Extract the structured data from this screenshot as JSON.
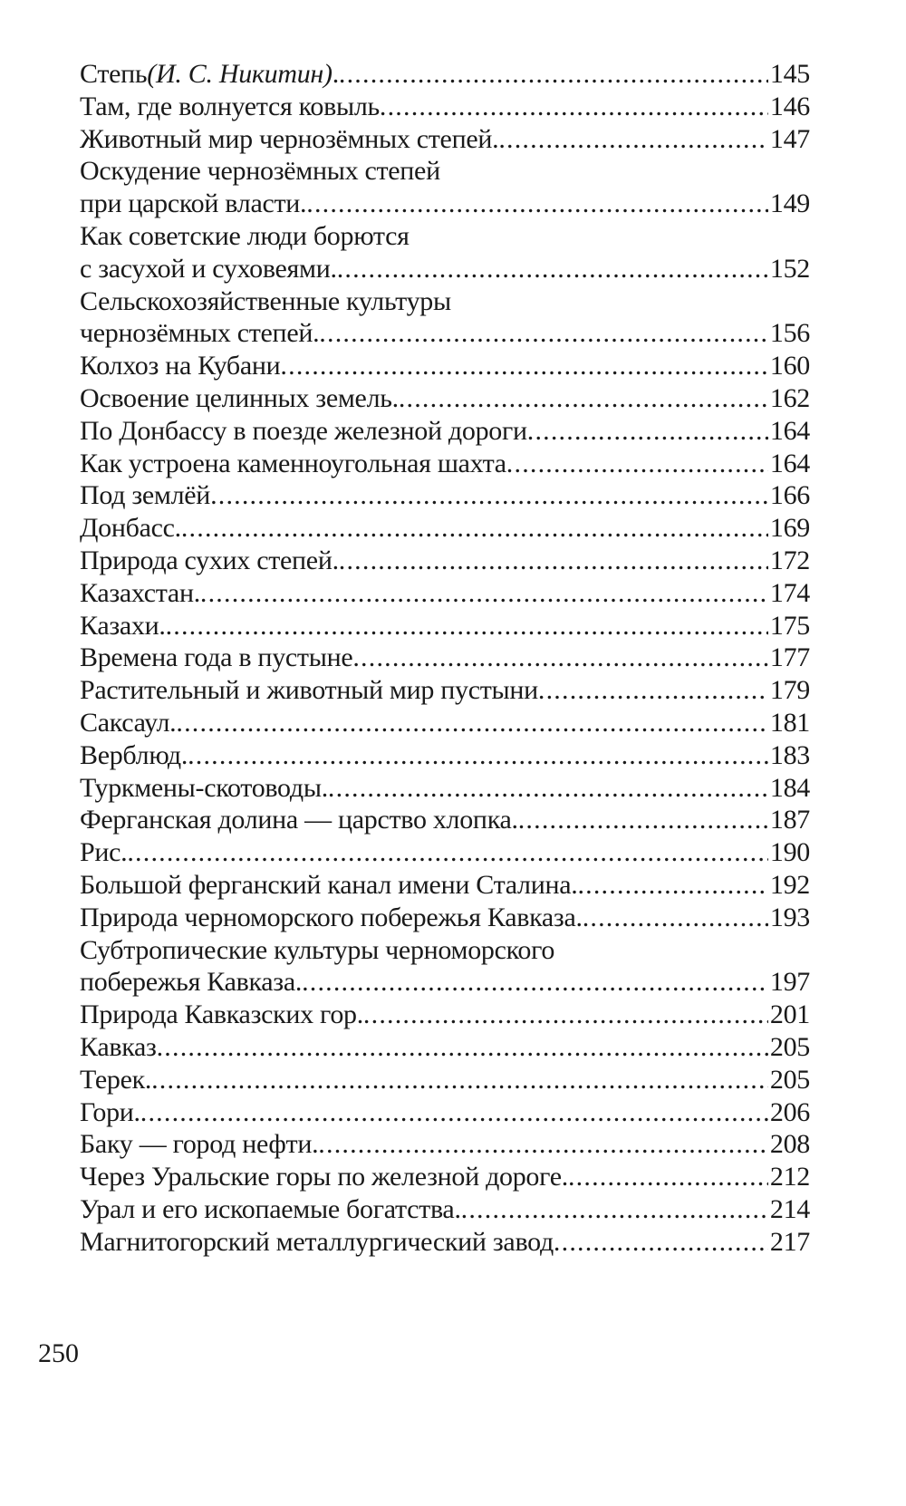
{
  "toc": {
    "entries": [
      {
        "lines": [
          "Степь "
        ],
        "italic": "(И. С. Никитин)",
        "suffix": ".",
        "page": "145"
      },
      {
        "lines": [
          "Там, где волнуется ковыль"
        ],
        "page": "146"
      },
      {
        "lines": [
          "Животный мир чернозёмных степей."
        ],
        "page": "147"
      },
      {
        "lines": [
          "Оскудение чернозёмных степей",
          "при царской власти."
        ],
        "page": "149"
      },
      {
        "lines": [
          "Как советские люди борются",
          "с засухой и суховеями."
        ],
        "page": "152"
      },
      {
        "lines": [
          "Сельскохозяйственные культуры",
          "чернозёмных степей."
        ],
        "page": "156"
      },
      {
        "lines": [
          "Колхоз на Кубани"
        ],
        "page": "160"
      },
      {
        "lines": [
          "Освоение целинных земель."
        ],
        "page": "162"
      },
      {
        "lines": [
          "По Донбассу в поезде железной дороги"
        ],
        "page": "164"
      },
      {
        "lines": [
          "Как устроена каменноугольная шахта"
        ],
        "page": "164"
      },
      {
        "lines": [
          "Под землёй"
        ],
        "page": "166"
      },
      {
        "lines": [
          "Донбасс."
        ],
        "page": "169"
      },
      {
        "lines": [
          "Природа сухих степей."
        ],
        "page": "172"
      },
      {
        "lines": [
          "Казахстан."
        ],
        "page": "174"
      },
      {
        "lines": [
          "Казахи."
        ],
        "page": "175"
      },
      {
        "lines": [
          "Времена года в пустыне"
        ],
        "page": "177"
      },
      {
        "lines": [
          "Растительный и животный мир пустыни"
        ],
        "page": "179"
      },
      {
        "lines": [
          "Саксаул."
        ],
        "page": "181"
      },
      {
        "lines": [
          "Верблюд."
        ],
        "page": "183"
      },
      {
        "lines": [
          "Туркмены-скотоводы."
        ],
        "page": "184"
      },
      {
        "lines": [
          "Ферганская долина — царство хлопка."
        ],
        "page": "187"
      },
      {
        "lines": [
          "Рис."
        ],
        "page": "190"
      },
      {
        "lines": [
          "Большой ферганский канал имени Сталина."
        ],
        "page": "192"
      },
      {
        "lines": [
          "Природа черноморского побережья Кавказа."
        ],
        "page": "193"
      },
      {
        "lines": [
          "Субтропические культуры черноморского",
          "побережья Кавказа."
        ],
        "page": "197"
      },
      {
        "lines": [
          "Природа Кавказских гор."
        ],
        "page": "201"
      },
      {
        "lines": [
          "Кавказ"
        ],
        "page": "205"
      },
      {
        "lines": [
          "Терек."
        ],
        "page": "205"
      },
      {
        "lines": [
          "Гори."
        ],
        "page": "206"
      },
      {
        "lines": [
          "Баку — город нефти."
        ],
        "page": "208"
      },
      {
        "lines": [
          "Через Уральские горы по железной дороге."
        ],
        "page": "212"
      },
      {
        "lines": [
          "Урал и его ископаемые богатства."
        ],
        "page": "214"
      },
      {
        "lines": [
          "Магнитогорский металлургический завод"
        ],
        "page": "217"
      }
    ]
  },
  "page_number": "250"
}
